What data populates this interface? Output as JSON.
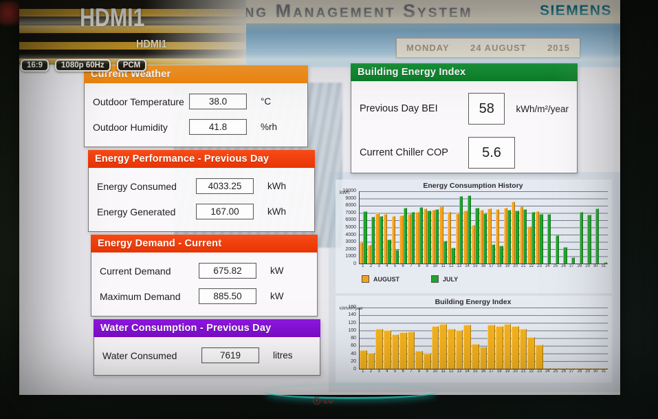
{
  "tv": {
    "input_label_large": "HDMI1",
    "input_label_small": "HDMI1",
    "osd_badges": [
      "16:9",
      "1080p 60Hz",
      "PCM"
    ],
    "brand": "LG"
  },
  "header": {
    "title": "Building Management System",
    "logo": "SIEMENS",
    "date": {
      "day_name": "MONDAY",
      "day_month": "24 AUGUST",
      "year": "2015"
    }
  },
  "panels": {
    "current_weather": {
      "title": "Current Weather",
      "rows": [
        {
          "label": "Outdoor Temperature",
          "value": "38.0",
          "unit": "°C"
        },
        {
          "label": "Outdoor Humidity",
          "value": "41.8",
          "unit": "%rh"
        }
      ]
    },
    "energy_performance": {
      "title": "Energy Performance - Previous Day",
      "rows": [
        {
          "label": "Energy Consumed",
          "value": "4033.25",
          "unit": "kWh"
        },
        {
          "label": "Energy Generated",
          "value": "167.00",
          "unit": "kWh"
        }
      ]
    },
    "energy_demand": {
      "title": "Energy Demand - Current",
      "rows": [
        {
          "label": "Current Demand",
          "value": "675.82",
          "unit": "kW"
        },
        {
          "label": "Maximum Demand",
          "value": "885.50",
          "unit": "kW"
        }
      ]
    },
    "water_consumption": {
      "title": "Water Consumption - Previous Day",
      "rows": [
        {
          "label": "Water Consumed",
          "value": "7619",
          "unit": "litres"
        }
      ]
    },
    "building_energy_index": {
      "title": "Building Energy Index",
      "rows": [
        {
          "label": "Previous Day BEI",
          "value": "58",
          "unit": "kWh/m²/year"
        },
        {
          "label": "Current Chiller COP",
          "value": "5.6",
          "unit": ""
        }
      ]
    }
  },
  "colors": {
    "header_orange": "#f1860d",
    "header_red": "#e83404",
    "header_purple": "#7c0cc9",
    "header_green": "#0d7f2a",
    "siemens_petrol": "#0d7a8f",
    "bar_august_orange": "#f5a21d",
    "bar_july_green": "#1ea32c",
    "bar_bei_orange": "#f6b31d"
  },
  "chart_data": [
    {
      "type": "bar",
      "title": "Energy Consumption History",
      "ylabel": "kWh",
      "ylim": [
        0,
        10000
      ],
      "yticks": [
        10000,
        9000,
        8000,
        7000,
        6000,
        5000,
        4000,
        3000,
        2000,
        1000,
        0
      ],
      "categories": [
        1,
        2,
        3,
        4,
        5,
        6,
        7,
        8,
        9,
        10,
        11,
        12,
        13,
        14,
        15,
        16,
        17,
        18,
        19,
        20,
        21,
        22,
        23,
        24,
        25,
        26,
        27,
        28,
        29,
        30,
        31
      ],
      "legend_position": "bottom-left",
      "grid": true,
      "series": [
        {
          "name": "AUGUST",
          "color": "#f5a21d",
          "values": [
            3000,
            2600,
            7000,
            6900,
            6600,
            6700,
            6900,
            7100,
            7600,
            7400,
            7900,
            7100,
            7000,
            7300,
            5300,
            7400,
            7600,
            7500,
            7700,
            8600,
            7900,
            5100,
            7200,
            0,
            0,
            0,
            0,
            0,
            0,
            0,
            0
          ]
        },
        {
          "name": "JULY",
          "color": "#1ea32c",
          "values": [
            7200,
            6500,
            6600,
            3300,
            1900,
            7700,
            7100,
            7800,
            7300,
            7500,
            3100,
            2200,
            9300,
            9400,
            7700,
            7000,
            2700,
            2500,
            7400,
            7300,
            7500,
            7100,
            6900,
            6900,
            3900,
            2300,
            900,
            7100,
            6800,
            7600,
            200
          ]
        }
      ]
    },
    {
      "type": "bar",
      "title": "Building Energy Index",
      "ylabel": "kWh/m²/year",
      "ylim": [
        0,
        160
      ],
      "yticks": [
        160,
        140,
        120,
        100,
        80,
        60,
        40,
        20,
        0
      ],
      "categories": [
        1,
        2,
        3,
        4,
        5,
        6,
        7,
        8,
        9,
        10,
        11,
        12,
        13,
        14,
        15,
        16,
        17,
        18,
        19,
        20,
        21,
        22,
        23,
        24,
        25,
        26,
        27,
        28,
        29,
        30,
        31
      ],
      "grid": true,
      "series": [
        {
          "name": "BEI",
          "color": "#f6b31d",
          "values": [
            48,
            42,
            105,
            100,
            90,
            95,
            97,
            47,
            40,
            112,
            117,
            105,
            100,
            115,
            65,
            57,
            115,
            112,
            116,
            112,
            105,
            83,
            63,
            2,
            2,
            2,
            2,
            2,
            2,
            2,
            2
          ]
        }
      ]
    }
  ]
}
